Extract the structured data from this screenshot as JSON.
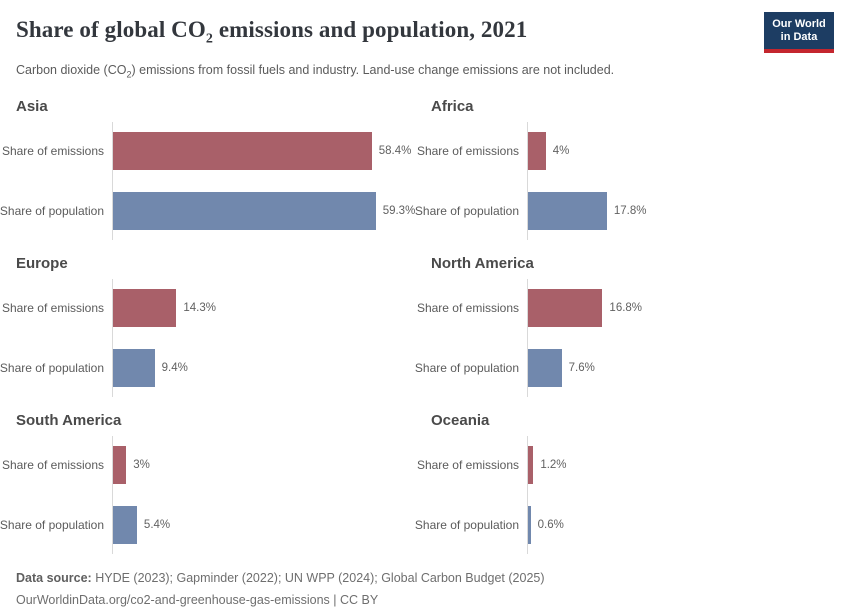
{
  "header": {
    "title": {
      "prefix": "Share of global CO",
      "subscript": "2",
      "suffix": " emissions and population, 2021"
    },
    "subtitle": {
      "prefix": "Carbon dioxide (CO",
      "subscript": "2",
      "suffix": ") emissions from fossil fuels and industry. Land-use change emissions are not included."
    },
    "logo": {
      "line1": "Our World",
      "line2": "in Data"
    }
  },
  "colors": {
    "emissions": "#a96069",
    "population": "#7188ad",
    "axis_line": "#d9d9d9"
  },
  "panels": [
    {
      "title": "Asia",
      "bars": [
        {
          "label": "Share of emissions",
          "series": "emissions",
          "value": 58.4,
          "display": "58.4%"
        },
        {
          "label": "Share of population",
          "series": "population",
          "value": 59.3,
          "display": "59.3%"
        }
      ]
    },
    {
      "title": "Africa",
      "bars": [
        {
          "label": "Share of emissions",
          "series": "emissions",
          "value": 4,
          "display": "4%"
        },
        {
          "label": "Share of population",
          "series": "population",
          "value": 17.8,
          "display": "17.8%"
        }
      ]
    },
    {
      "title": "Europe",
      "bars": [
        {
          "label": "Share of emissions",
          "series": "emissions",
          "value": 14.3,
          "display": "14.3%"
        },
        {
          "label": "Share of population",
          "series": "population",
          "value": 9.4,
          "display": "9.4%"
        }
      ]
    },
    {
      "title": "North America",
      "bars": [
        {
          "label": "Share of emissions",
          "series": "emissions",
          "value": 16.8,
          "display": "16.8%"
        },
        {
          "label": "Share of population",
          "series": "population",
          "value": 7.6,
          "display": "7.6%"
        }
      ]
    },
    {
      "title": "South America",
      "bars": [
        {
          "label": "Share of emissions",
          "series": "emissions",
          "value": 3,
          "display": "3%"
        },
        {
          "label": "Share of population",
          "series": "population",
          "value": 5.4,
          "display": "5.4%"
        }
      ]
    },
    {
      "title": "Oceania",
      "bars": [
        {
          "label": "Share of emissions",
          "series": "emissions",
          "value": 1.2,
          "display": "1.2%"
        },
        {
          "label": "Share of population",
          "series": "population",
          "value": 0.6,
          "display": "0.6%"
        }
      ]
    }
  ],
  "footer": {
    "source_label": "Data source:",
    "source_text": "HYDE (2023); Gapminder (2022); UN WPP (2024); Global Carbon Budget (2025)",
    "attribution": "OurWorldinData.org/co2-and-greenhouse-gas-emissions | CC BY"
  },
  "chart_data": {
    "type": "bar",
    "orientation": "horizontal",
    "title": "Share of global CO2 emissions and population, 2021",
    "subtitle": "Carbon dioxide (CO2) emissions from fossil fuels and industry. Land-use change emissions are not included.",
    "unit": "%",
    "categories": [
      "Share of emissions",
      "Share of population"
    ],
    "series": [
      {
        "name": "Asia",
        "values": [
          58.4,
          59.3
        ]
      },
      {
        "name": "Africa",
        "values": [
          4,
          17.8
        ]
      },
      {
        "name": "Europe",
        "values": [
          14.3,
          9.4
        ]
      },
      {
        "name": "North America",
        "values": [
          16.8,
          7.6
        ]
      },
      {
        "name": "South America",
        "values": [
          3,
          5.4
        ]
      },
      {
        "name": "Oceania",
        "values": [
          1.2,
          0.6
        ]
      }
    ],
    "xlim": [
      0,
      59.3
    ],
    "grid": false,
    "legend": "none",
    "layout": "small-multiples, 2 columns x 3 rows, shared x scale across panels"
  }
}
